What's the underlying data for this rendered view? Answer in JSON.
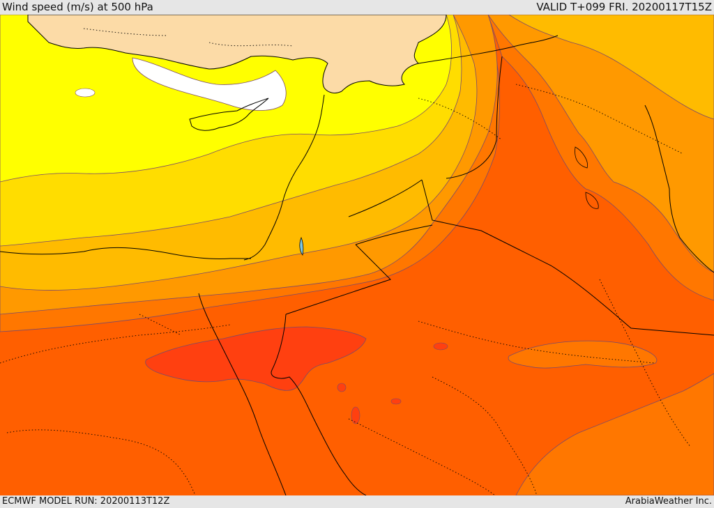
{
  "header": {
    "title": "Wind speed (m/s) at 500 hPa",
    "valid_time": "VALID T+099 FRI. 20200117T15Z"
  },
  "footer": {
    "model_run": "ECMWF MODEL RUN: 20200113T12Z",
    "credit": "ArabiaWeather Inc."
  },
  "colors": {
    "land_no_data": "#fcdba7",
    "calm_white": "#ffffff",
    "band_yellow": "#ffff00",
    "band_gold": "#ffdd00",
    "band_amber": "#ffbb00",
    "band_orange_light": "#ff9900",
    "band_orange": "#ff7700",
    "band_orange_dark": "#ff5f00",
    "band_red_orange": "#ff4010",
    "coastline": "#000000",
    "contour": "#7a4a6a"
  }
}
